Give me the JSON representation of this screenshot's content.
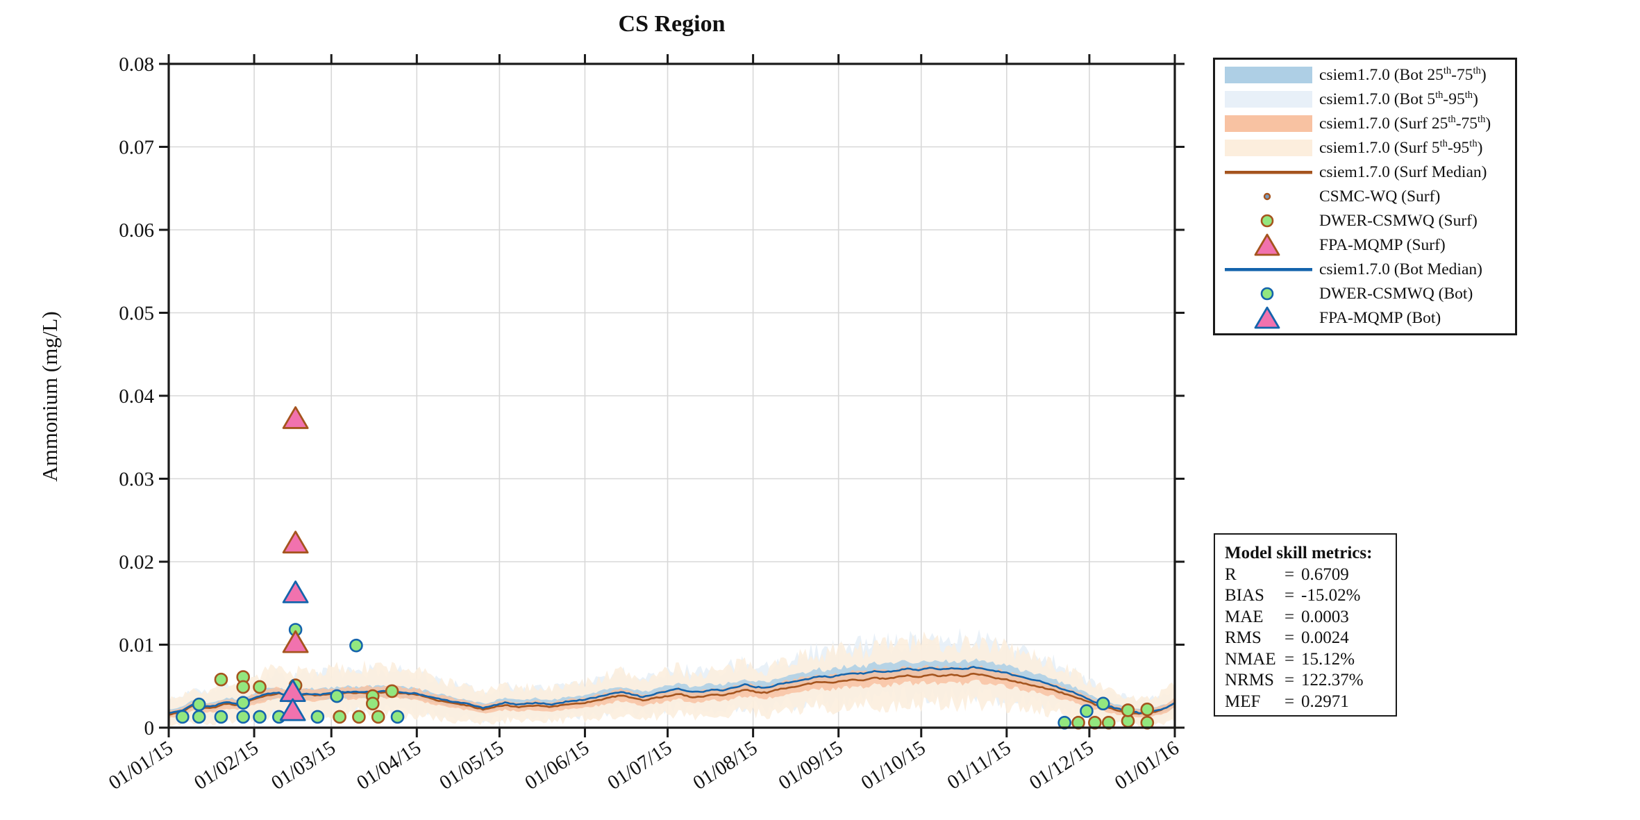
{
  "chart_data": {
    "type": "line",
    "title": "CS Region",
    "ylabel": "Ammonium (mg/L)",
    "xlabel": "",
    "ylim": [
      0,
      0.08
    ],
    "ytick_labels": [
      "0",
      "0.01",
      "0.02",
      "0.03",
      "0.04",
      "0.05",
      "0.06",
      "0.07",
      "0.08"
    ],
    "ytick_values": [
      0,
      0.01,
      0.02,
      0.03,
      0.04,
      0.05,
      0.06,
      0.07,
      0.08
    ],
    "xtick_labels": [
      "01/01/15",
      "01/02/15",
      "01/03/15",
      "01/04/15",
      "01/05/15",
      "01/06/15",
      "01/07/15",
      "01/08/15",
      "01/09/15",
      "01/10/15",
      "01/11/15",
      "01/12/15",
      "01/01/16"
    ],
    "xtick_days": [
      0,
      31,
      59,
      90,
      120,
      151,
      181,
      212,
      243,
      273,
      304,
      334,
      365
    ],
    "grid": true,
    "legend_position": "outside-right",
    "series": [
      {
        "name": "csiem1.7.0 (Bot 25th-75th)",
        "type": "band",
        "around": "csiem1.7.0 (Bot Median)",
        "spread": "25-75",
        "color": "#AECFE5"
      },
      {
        "name": "csiem1.7.0 (Bot 5th-95th)",
        "type": "band",
        "around": "csiem1.7.0 (Bot Median)",
        "spread": "5-95",
        "color": "#E8F0F8"
      },
      {
        "name": "csiem1.7.0 (Surf 25th-75th)",
        "type": "band",
        "around": "csiem1.7.0 (Surf Median)",
        "spread": "25-75",
        "color": "#F8C2A2"
      },
      {
        "name": "csiem1.7.0 (Surf 5th-95th)",
        "type": "band",
        "around": "csiem1.7.0 (Surf Median)",
        "spread": "5-95",
        "color": "#FCEEDD"
      },
      {
        "name": "csiem1.7.0 (Surf Median)",
        "type": "line",
        "color": "#A5541E",
        "points": [
          [
            0,
            0.0016
          ],
          [
            5,
            0.0019
          ],
          [
            9,
            0.0027
          ],
          [
            12,
            0.0023
          ],
          [
            16,
            0.0024
          ],
          [
            21,
            0.0029
          ],
          [
            25,
            0.0027
          ],
          [
            31,
            0.0034
          ],
          [
            36,
            0.0039
          ],
          [
            40,
            0.0041
          ],
          [
            44,
            0.0037
          ],
          [
            49,
            0.004
          ],
          [
            55,
            0.0039
          ],
          [
            59,
            0.0041
          ],
          [
            66,
            0.0042
          ],
          [
            73,
            0.0042
          ],
          [
            80,
            0.0043
          ],
          [
            86,
            0.0041
          ],
          [
            90,
            0.004
          ],
          [
            96,
            0.0034
          ],
          [
            102,
            0.003
          ],
          [
            108,
            0.0027
          ],
          [
            114,
            0.0022
          ],
          [
            118,
            0.0025
          ],
          [
            122,
            0.0027
          ],
          [
            127,
            0.0025
          ],
          [
            133,
            0.0027
          ],
          [
            139,
            0.0025
          ],
          [
            144,
            0.0028
          ],
          [
            151,
            0.003
          ],
          [
            156,
            0.0033
          ],
          [
            161,
            0.0037
          ],
          [
            164,
            0.0039
          ],
          [
            168,
            0.0036
          ],
          [
            172,
            0.0033
          ],
          [
            177,
            0.0036
          ],
          [
            181,
            0.0038
          ],
          [
            185,
            0.0041
          ],
          [
            189,
            0.0037
          ],
          [
            193,
            0.0037
          ],
          [
            197,
            0.004
          ],
          [
            201,
            0.0039
          ],
          [
            205,
            0.0042
          ],
          [
            209,
            0.0046
          ],
          [
            213,
            0.0043
          ],
          [
            217,
            0.0042
          ],
          [
            221,
            0.0046
          ],
          [
            226,
            0.0049
          ],
          [
            231,
            0.0052
          ],
          [
            236,
            0.0055
          ],
          [
            240,
            0.0054
          ],
          [
            244,
            0.0056
          ],
          [
            248,
            0.0058
          ],
          [
            252,
            0.0057
          ],
          [
            256,
            0.006
          ],
          [
            260,
            0.0059
          ],
          [
            264,
            0.0061
          ],
          [
            268,
            0.0063
          ],
          [
            272,
            0.0061
          ],
          [
            276,
            0.0064
          ],
          [
            280,
            0.0062
          ],
          [
            284,
            0.0064
          ],
          [
            288,
            0.0062
          ],
          [
            292,
            0.0065
          ],
          [
            296,
            0.0063
          ],
          [
            300,
            0.006
          ],
          [
            304,
            0.0058
          ],
          [
            308,
            0.0055
          ],
          [
            312,
            0.0052
          ],
          [
            316,
            0.0049
          ],
          [
            320,
            0.0046
          ],
          [
            324,
            0.0042
          ],
          [
            328,
            0.0038
          ],
          [
            332,
            0.0033
          ],
          [
            336,
            0.0028
          ],
          [
            340,
            0.0025
          ],
          [
            344,
            0.0021
          ],
          [
            348,
            0.0018
          ],
          [
            352,
            0.0017
          ],
          [
            356,
            0.0018
          ],
          [
            359,
            0.002
          ],
          [
            362,
            0.0024
          ],
          [
            365,
            0.003
          ]
        ]
      },
      {
        "name": "CSMC-WQ (Surf)",
        "type": "scatter",
        "marker": "dot",
        "fill": "#7A9BBF",
        "edge": "#A5541E",
        "points": []
      },
      {
        "name": "DWER-CSMWQ (Surf)",
        "type": "scatter",
        "marker": "circle",
        "fill": "#93E77F",
        "edge": "#A5541E",
        "points": [
          [
            19,
            0.0058
          ],
          [
            27,
            0.0061
          ],
          [
            27,
            0.0049
          ],
          [
            33,
            0.0049
          ],
          [
            46,
            0.0051
          ],
          [
            62,
            0.0013
          ],
          [
            69,
            0.0013
          ],
          [
            74,
            0.0038
          ],
          [
            74,
            0.0029
          ],
          [
            76,
            0.0013
          ],
          [
            81,
            0.0044
          ],
          [
            330,
            0.0006
          ],
          [
            336,
            0.0006
          ],
          [
            341,
            0.0006
          ],
          [
            348,
            0.0008
          ],
          [
            348,
            0.0021
          ],
          [
            355,
            0.0022
          ],
          [
            355,
            0.0006
          ]
        ]
      },
      {
        "name": "FPA-MQMP (Surf)",
        "type": "scatter",
        "marker": "triangle",
        "fill": "#F172AE",
        "edge": "#A5541E",
        "points": [
          [
            46,
            0.0372
          ],
          [
            46,
            0.0222
          ],
          [
            46,
            0.0102
          ]
        ]
      },
      {
        "name": "csiem1.7.0 (Bot Median)",
        "type": "line",
        "color": "#1464AC",
        "points": [
          [
            0,
            0.0018
          ],
          [
            5,
            0.0021
          ],
          [
            9,
            0.0029
          ],
          [
            12,
            0.0025
          ],
          [
            16,
            0.0026
          ],
          [
            21,
            0.0031
          ],
          [
            25,
            0.0029
          ],
          [
            31,
            0.0036
          ],
          [
            36,
            0.0041
          ],
          [
            40,
            0.0042
          ],
          [
            44,
            0.0038
          ],
          [
            49,
            0.0041
          ],
          [
            55,
            0.004
          ],
          [
            59,
            0.0042
          ],
          [
            66,
            0.0043
          ],
          [
            73,
            0.0043
          ],
          [
            80,
            0.0044
          ],
          [
            86,
            0.0042
          ],
          [
            90,
            0.0041
          ],
          [
            96,
            0.0036
          ],
          [
            102,
            0.0032
          ],
          [
            108,
            0.0029
          ],
          [
            114,
            0.0024
          ],
          [
            118,
            0.0027
          ],
          [
            122,
            0.003
          ],
          [
            127,
            0.0028
          ],
          [
            133,
            0.003
          ],
          [
            139,
            0.0028
          ],
          [
            144,
            0.0031
          ],
          [
            151,
            0.0034
          ],
          [
            156,
            0.0037
          ],
          [
            161,
            0.0041
          ],
          [
            164,
            0.0043
          ],
          [
            168,
            0.004
          ],
          [
            172,
            0.0037
          ],
          [
            177,
            0.0041
          ],
          [
            181,
            0.0044
          ],
          [
            185,
            0.0047
          ],
          [
            189,
            0.0043
          ],
          [
            193,
            0.0043
          ],
          [
            197,
            0.0046
          ],
          [
            201,
            0.0045
          ],
          [
            205,
            0.0048
          ],
          [
            209,
            0.0052
          ],
          [
            213,
            0.0049
          ],
          [
            217,
            0.0048
          ],
          [
            221,
            0.0052
          ],
          [
            226,
            0.0055
          ],
          [
            231,
            0.0058
          ],
          [
            236,
            0.0062
          ],
          [
            240,
            0.0061
          ],
          [
            244,
            0.0064
          ],
          [
            248,
            0.0066
          ],
          [
            252,
            0.0065
          ],
          [
            256,
            0.0068
          ],
          [
            260,
            0.0067
          ],
          [
            264,
            0.0069
          ],
          [
            268,
            0.0071
          ],
          [
            272,
            0.0069
          ],
          [
            276,
            0.0072
          ],
          [
            280,
            0.007
          ],
          [
            284,
            0.0072
          ],
          [
            288,
            0.007
          ],
          [
            292,
            0.0073
          ],
          [
            296,
            0.0071
          ],
          [
            300,
            0.0068
          ],
          [
            304,
            0.0066
          ],
          [
            308,
            0.0062
          ],
          [
            312,
            0.0059
          ],
          [
            316,
            0.0056
          ],
          [
            320,
            0.0052
          ],
          [
            324,
            0.0047
          ],
          [
            328,
            0.0043
          ],
          [
            332,
            0.0037
          ],
          [
            336,
            0.0031
          ],
          [
            340,
            0.0027
          ],
          [
            344,
            0.0023
          ],
          [
            348,
            0.002
          ],
          [
            352,
            0.0018
          ],
          [
            356,
            0.0019
          ],
          [
            359,
            0.0021
          ],
          [
            362,
            0.0024
          ],
          [
            365,
            0.003
          ]
        ]
      },
      {
        "name": "DWER-CSMWQ (Bot)",
        "type": "scatter",
        "marker": "circle",
        "fill": "#93E77F",
        "edge": "#1464AC",
        "points": [
          [
            5,
            0.0013
          ],
          [
            11,
            0.0013
          ],
          [
            11,
            0.0028
          ],
          [
            19,
            0.0013
          ],
          [
            27,
            0.0013
          ],
          [
            27,
            0.003
          ],
          [
            33,
            0.0013
          ],
          [
            40,
            0.0013
          ],
          [
            46,
            0.0118
          ],
          [
            54,
            0.0013
          ],
          [
            61,
            0.0038
          ],
          [
            68,
            0.0099
          ],
          [
            83,
            0.0013
          ],
          [
            325,
            0.0006
          ],
          [
            333,
            0.002
          ],
          [
            339,
            0.0029
          ]
        ]
      },
      {
        "name": "FPA-MQMP (Bot)",
        "type": "scatter",
        "marker": "triangle",
        "fill": "#F172AE",
        "edge": "#1464AC",
        "points": [
          [
            46,
            0.0162
          ],
          [
            45,
            0.0043
          ],
          [
            45,
            0.002
          ]
        ]
      }
    ]
  },
  "legend": {
    "items": [
      {
        "kind": "band",
        "fill": "#AECFE5",
        "label": [
          [
            "t",
            "csiem1.7.0 (Bot 25"
          ],
          [
            "s",
            "th"
          ],
          [
            "t",
            "-75"
          ],
          [
            "s",
            "th"
          ],
          [
            "t",
            ")"
          ]
        ]
      },
      {
        "kind": "band",
        "fill": "#E8F0F8",
        "label": [
          [
            "t",
            "csiem1.7.0 (Bot 5"
          ],
          [
            "s",
            "th"
          ],
          [
            "t",
            "-95"
          ],
          [
            "s",
            "th"
          ],
          [
            "t",
            ")"
          ]
        ]
      },
      {
        "kind": "band",
        "fill": "#F8C2A2",
        "label": [
          [
            "t",
            "csiem1.7.0 (Surf 25"
          ],
          [
            "s",
            "th"
          ],
          [
            "t",
            "-75"
          ],
          [
            "s",
            "th"
          ],
          [
            "t",
            ")"
          ]
        ]
      },
      {
        "kind": "band",
        "fill": "#FCEEDD",
        "label": [
          [
            "t",
            "csiem1.7.0 (Surf 5"
          ],
          [
            "s",
            "th"
          ],
          [
            "t",
            "-95"
          ],
          [
            "s",
            "th"
          ],
          [
            "t",
            ")"
          ]
        ]
      },
      {
        "kind": "line",
        "color": "#A5541E",
        "label": [
          [
            "t",
            "csiem1.7.0 (Surf Median)"
          ]
        ]
      },
      {
        "kind": "dot",
        "fill": "#7A9BBF",
        "edge": "#A5541E",
        "label": [
          [
            "t",
            "CSMC-WQ (Surf)"
          ]
        ]
      },
      {
        "kind": "circle",
        "fill": "#93E77F",
        "edge": "#A5541E",
        "label": [
          [
            "t",
            "DWER-CSMWQ (Surf)"
          ]
        ]
      },
      {
        "kind": "triangle",
        "fill": "#F172AE",
        "edge": "#A5541E",
        "label": [
          [
            "t",
            "FPA-MQMP (Surf)"
          ]
        ]
      },
      {
        "kind": "line",
        "color": "#1464AC",
        "label": [
          [
            "t",
            "csiem1.7.0 (Bot Median)"
          ]
        ]
      },
      {
        "kind": "circle",
        "fill": "#93E77F",
        "edge": "#1464AC",
        "label": [
          [
            "t",
            "DWER-CSMWQ (Bot)"
          ]
        ]
      },
      {
        "kind": "triangle",
        "fill": "#F172AE",
        "edge": "#1464AC",
        "label": [
          [
            "t",
            "FPA-MQMP (Bot)"
          ]
        ]
      }
    ]
  },
  "metrics": {
    "title": "Model skill metrics:",
    "rows": [
      {
        "label": "R",
        "value": "0.6709"
      },
      {
        "label": "BIAS",
        "value": "-15.02%"
      },
      {
        "label": "MAE",
        "value": "0.0003"
      },
      {
        "label": "RMS",
        "value": "0.0024"
      },
      {
        "label": "NMAE",
        "value": "15.12%"
      },
      {
        "label": "NRMS",
        "value": "122.37%"
      },
      {
        "label": "MEF",
        "value": "0.2971"
      }
    ]
  }
}
